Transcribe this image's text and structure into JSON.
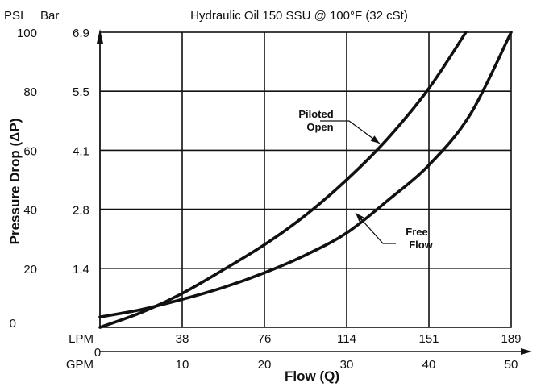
{
  "chart_data": {
    "type": "line",
    "title": "Hydraulic Oil 150 SSU @ 100°F (32 cSt)",
    "ylabel": "Pressure Drop (ΔP)",
    "xlabel": "Flow (Q)",
    "y_units_left": "PSI",
    "y_units_right": "Bar",
    "x_units_top": "LPM",
    "x_units_bottom": "GPM",
    "xlim": [
      0,
      50
    ],
    "ylim": [
      0,
      100
    ],
    "grid": true,
    "y_ticks_psi": [
      "0",
      "20",
      "40",
      "60",
      "80",
      "100"
    ],
    "y_ticks_psi_values": [
      0,
      20,
      40,
      60,
      80,
      100
    ],
    "y_ticks_bar": [
      "1.4",
      "2.8",
      "4.1",
      "5.5",
      "6.9"
    ],
    "y_ticks_bar_values": [
      20,
      40,
      60,
      80,
      100
    ],
    "x_ticks_gpm": [
      "0",
      "10",
      "20",
      "30",
      "40",
      "50"
    ],
    "x_ticks_gpm_values": [
      0,
      10,
      20,
      30,
      40,
      50
    ],
    "x_ticks_lpm": [
      "38",
      "76",
      "114",
      "151",
      "189"
    ],
    "x_ticks_lpm_values": [
      10,
      20,
      30,
      40,
      50
    ],
    "series": [
      {
        "name": "Piloted Open",
        "x": [
          0,
          5,
          10,
          15,
          20,
          25,
          30,
          35,
          40,
          44.5
        ],
        "y": [
          0,
          5,
          11.5,
          19.5,
          28,
          38,
          50,
          64,
          81,
          100
        ]
      },
      {
        "name": "Free Flow",
        "x": [
          0,
          5,
          10,
          15,
          20,
          25,
          30,
          35,
          40,
          45,
          50
        ],
        "y": [
          3.5,
          6,
          9.5,
          13.5,
          18.5,
          24.5,
          32,
          43,
          55,
          72,
          100
        ]
      }
    ],
    "annotations": [
      {
        "text": [
          "Piloted",
          "Open"
        ],
        "series": "Piloted Open",
        "x": 32.7,
        "y": 58
      },
      {
        "text": [
          "Free",
          "Flow"
        ],
        "series": "Free Flow",
        "x": 30.7,
        "y": 37
      }
    ]
  }
}
